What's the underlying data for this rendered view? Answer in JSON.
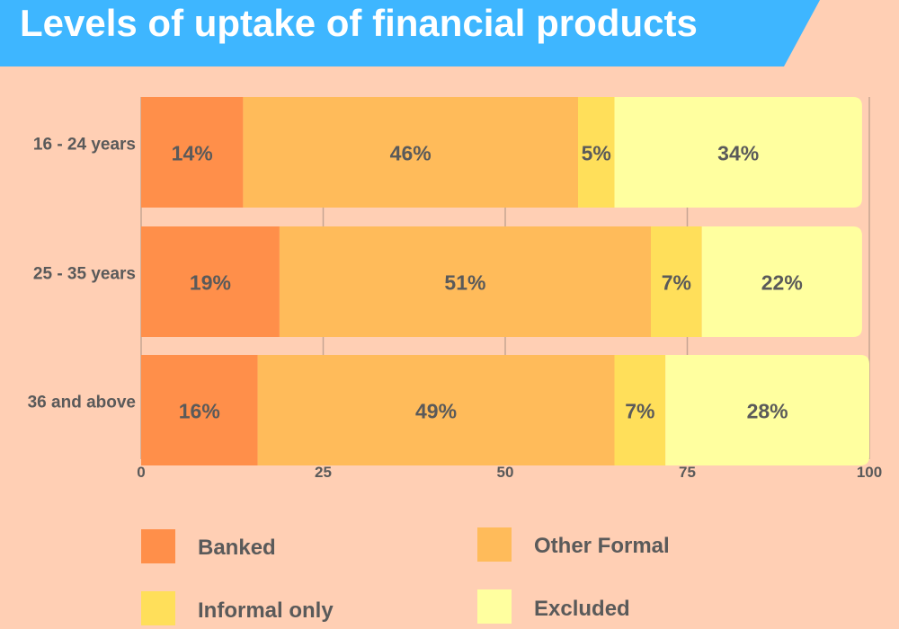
{
  "chart_data": {
    "type": "bar",
    "orientation": "horizontal",
    "stacked": true,
    "title": "Levels of uptake of financial products",
    "categories": [
      "16 - 24 years",
      "25 - 35 years",
      "36 and above"
    ],
    "series": [
      {
        "name": "Banked",
        "values": [
          14,
          19,
          16
        ],
        "labels": [
          "14%",
          "19%",
          "16%"
        ],
        "color": "#ff8f4a"
      },
      {
        "name": "Other Formal",
        "values": [
          46,
          51,
          49
        ],
        "labels": [
          "46%",
          "51%",
          "49%"
        ],
        "color": "#ffbb5a"
      },
      {
        "name": "Informal only",
        "values": [
          5,
          7,
          7
        ],
        "labels": [
          "5%",
          "7%",
          "7%"
        ],
        "color": "#ffdf5a"
      },
      {
        "name": "Excluded",
        "values": [
          34,
          22,
          28
        ],
        "labels": [
          "34%",
          "22%",
          "28%"
        ],
        "color": "#ffff9f"
      }
    ],
    "xlim": [
      0,
      100
    ],
    "xticks": [
      0,
      25,
      50,
      75,
      100
    ],
    "xtick_labels": [
      "0",
      "25",
      "50",
      "75",
      "100"
    ],
    "xlabel": "",
    "ylabel": "",
    "grid": true,
    "legend_position": "bottom"
  },
  "colors": {
    "background": "#ffcfb4",
    "banner": "#3eb6ff",
    "title_text": "#ffffff",
    "label_text": "#5a5a5a",
    "grid": "#c7a592"
  }
}
